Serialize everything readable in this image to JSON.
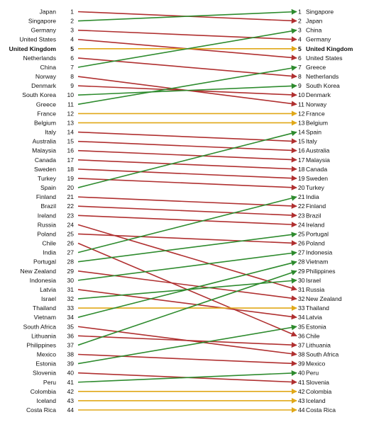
{
  "chart_data": {
    "type": "slope",
    "title": "",
    "rank_min": 1,
    "rank_max": 44,
    "colors": {
      "up": "#2e8b2e",
      "down": "#b03030",
      "same": "#e0a818"
    },
    "highlight_color": "#111111",
    "entries": [
      {
        "name": "Japan",
        "start": 1,
        "end": 2
      },
      {
        "name": "Singapore",
        "start": 2,
        "end": 1
      },
      {
        "name": "Germany",
        "start": 3,
        "end": 4
      },
      {
        "name": "United States",
        "start": 4,
        "end": 6
      },
      {
        "name": "United Kingdom",
        "start": 5,
        "end": 5,
        "highlight": true
      },
      {
        "name": "Netherlands",
        "start": 6,
        "end": 8
      },
      {
        "name": "China",
        "start": 7,
        "end": 3
      },
      {
        "name": "Norway",
        "start": 8,
        "end": 11
      },
      {
        "name": "Denmark",
        "start": 9,
        "end": 10
      },
      {
        "name": "South Korea",
        "start": 10,
        "end": 9
      },
      {
        "name": "Greece",
        "start": 11,
        "end": 7
      },
      {
        "name": "France",
        "start": 12,
        "end": 12
      },
      {
        "name": "Belgium",
        "start": 13,
        "end": 13
      },
      {
        "name": "Italy",
        "start": 14,
        "end": 15
      },
      {
        "name": "Australia",
        "start": 15,
        "end": 16
      },
      {
        "name": "Malaysia",
        "start": 16,
        "end": 17
      },
      {
        "name": "Canada",
        "start": 17,
        "end": 18
      },
      {
        "name": "Sweden",
        "start": 18,
        "end": 19
      },
      {
        "name": "Turkey",
        "start": 19,
        "end": 20
      },
      {
        "name": "Spain",
        "start": 20,
        "end": 14
      },
      {
        "name": "Finland",
        "start": 21,
        "end": 22
      },
      {
        "name": "Brazil",
        "start": 22,
        "end": 23
      },
      {
        "name": "Ireland",
        "start": 23,
        "end": 24
      },
      {
        "name": "Russia",
        "start": 24,
        "end": 31
      },
      {
        "name": "Poland",
        "start": 25,
        "end": 26
      },
      {
        "name": "Chile",
        "start": 26,
        "end": 36
      },
      {
        "name": "India",
        "start": 27,
        "end": 21
      },
      {
        "name": "Portugal",
        "start": 28,
        "end": 25
      },
      {
        "name": "New Zealand",
        "start": 29,
        "end": 32
      },
      {
        "name": "Indonesia",
        "start": 30,
        "end": 27
      },
      {
        "name": "Latvia",
        "start": 31,
        "end": 34
      },
      {
        "name": "Israel",
        "start": 32,
        "end": 30
      },
      {
        "name": "Thailand",
        "start": 33,
        "end": 33
      },
      {
        "name": "Vietnam",
        "start": 34,
        "end": 28
      },
      {
        "name": "South Africa",
        "start": 35,
        "end": 38
      },
      {
        "name": "Lithuania",
        "start": 36,
        "end": 37
      },
      {
        "name": "Philippines",
        "start": 37,
        "end": 29
      },
      {
        "name": "Mexico",
        "start": 38,
        "end": 39
      },
      {
        "name": "Estonia",
        "start": 39,
        "end": 35
      },
      {
        "name": "Slovenia",
        "start": 40,
        "end": 41
      },
      {
        "name": "Peru",
        "start": 41,
        "end": 40
      },
      {
        "name": "Colombia",
        "start": 42,
        "end": 42
      },
      {
        "name": "Iceland",
        "start": 43,
        "end": 43
      },
      {
        "name": "Costa Rica",
        "start": 44,
        "end": 44
      }
    ]
  }
}
